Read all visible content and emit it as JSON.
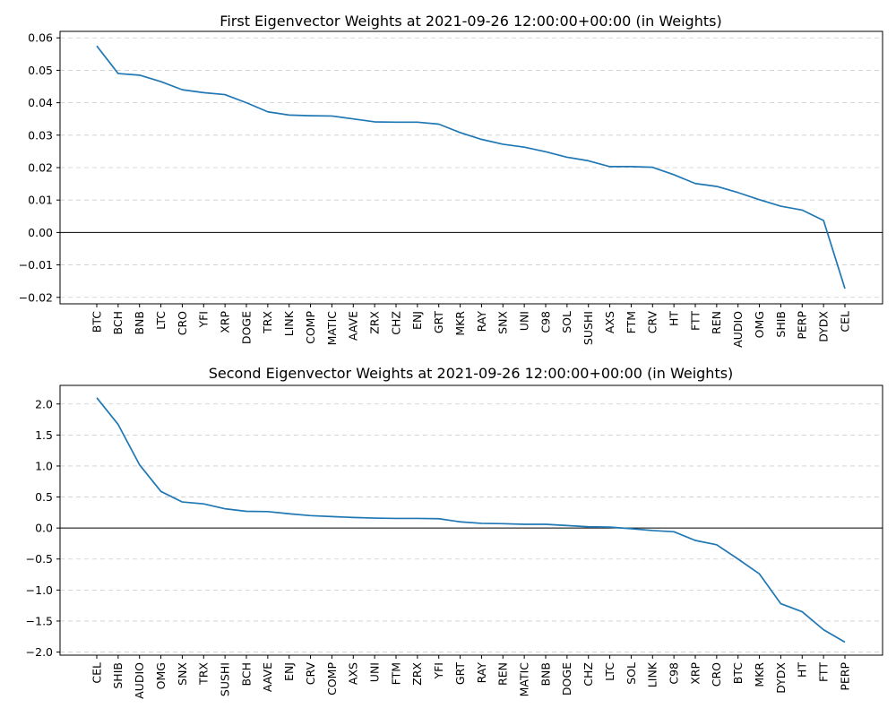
{
  "colors": {
    "series": "#1f77b4",
    "grid": "#cccccc",
    "axis": "#000000"
  },
  "chart_data": [
    {
      "type": "line",
      "title": "First Eigenvector Weights at 2021-09-26 12:00:00+00:00 (in Weights)",
      "xlabel": "",
      "ylabel": "",
      "ylim": [
        -0.022,
        0.062
      ],
      "yticks": [
        -0.02,
        -0.01,
        0.0,
        0.01,
        0.02,
        0.03,
        0.04,
        0.05,
        0.06
      ],
      "ytick_labels": [
        "−0.02",
        "−0.01",
        "0.00",
        "0.01",
        "0.02",
        "0.03",
        "0.04",
        "0.05",
        "0.06"
      ],
      "grid": "y-dashed",
      "zero_line": true,
      "categories": [
        "BTC",
        "BCH",
        "BNB",
        "LTC",
        "CRO",
        "YFI",
        "XRP",
        "DOGE",
        "TRX",
        "LINK",
        "COMP",
        "MATIC",
        "AAVE",
        "ZRX",
        "CHZ",
        "ENJ",
        "GRT",
        "MKR",
        "RAY",
        "SNX",
        "UNI",
        "C98",
        "SOL",
        "SUSHI",
        "AXS",
        "FTM",
        "CRV",
        "HT",
        "FTT",
        "REN",
        "AUDIO",
        "OMG",
        "SHIB",
        "PERP",
        "DYDX",
        "CEL"
      ],
      "values": [
        0.0575,
        0.049,
        0.0485,
        0.0465,
        0.044,
        0.0431,
        0.0425,
        0.04,
        0.0372,
        0.0362,
        0.036,
        0.0359,
        0.035,
        0.0341,
        0.034,
        0.034,
        0.0334,
        0.0308,
        0.0287,
        0.0272,
        0.0263,
        0.0249,
        0.0232,
        0.0221,
        0.0203,
        0.0203,
        0.0201,
        0.0178,
        0.0151,
        0.0142,
        0.0123,
        0.0101,
        0.0081,
        0.0069,
        0.0037,
        -0.0173
      ]
    },
    {
      "type": "line",
      "title": "Second Eigenvector Weights at 2021-09-26 12:00:00+00:00 (in Weights)",
      "xlabel": "",
      "ylabel": "",
      "ylim": [
        -2.05,
        2.3
      ],
      "yticks": [
        -2.0,
        -1.5,
        -1.0,
        -0.5,
        0.0,
        0.5,
        1.0,
        1.5,
        2.0
      ],
      "ytick_labels": [
        "−2.0",
        "−1.5",
        "−1.0",
        "−0.5",
        "0.0",
        "0.5",
        "1.0",
        "1.5",
        "2.0"
      ],
      "grid": "y-dashed",
      "zero_line": true,
      "categories": [
        "CEL",
        "SHIB",
        "AUDIO",
        "OMG",
        "SNX",
        "TRX",
        "SUSHI",
        "BCH",
        "AAVE",
        "ENJ",
        "CRV",
        "COMP",
        "AXS",
        "UNI",
        "FTM",
        "ZRX",
        "YFI",
        "GRT",
        "RAY",
        "REN",
        "MATIC",
        "BNB",
        "DOGE",
        "CHZ",
        "LTC",
        "SOL",
        "LINK",
        "C98",
        "XRP",
        "CRO",
        "BTC",
        "MKR",
        "DYDX",
        "HT",
        "FTT",
        "PERP"
      ],
      "values": [
        2.1,
        1.67,
        1.02,
        0.59,
        0.42,
        0.39,
        0.31,
        0.27,
        0.265,
        0.23,
        0.2,
        0.185,
        0.17,
        0.16,
        0.155,
        0.155,
        0.15,
        0.1,
        0.075,
        0.07,
        0.06,
        0.06,
        0.04,
        0.02,
        0.015,
        -0.01,
        -0.04,
        -0.06,
        -0.2,
        -0.27,
        -0.5,
        -0.74,
        -1.22,
        -1.35,
        -1.64,
        -1.84
      ]
    }
  ]
}
